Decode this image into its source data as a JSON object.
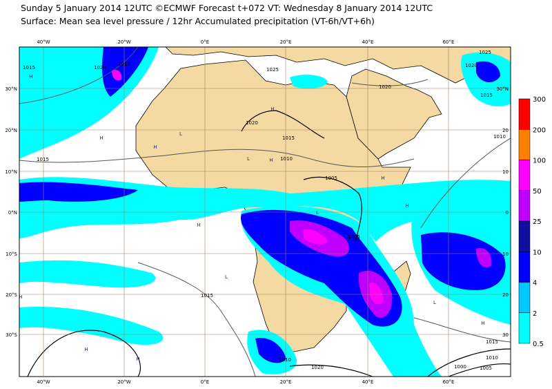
{
  "header": {
    "line1": "Sunday 5 January 2014 12UTC ©ECMWF Forecast t+072 VT: Wednesday 8 January 2014 12UTC",
    "line2": "Surface: Mean sea level pressure / 12hr Accumulated precipitation (VT-6h/VT+6h)"
  },
  "map": {
    "lon_labels": [
      "40°W",
      "20°W",
      "0°E",
      "20°E",
      "40°E",
      "60°E"
    ],
    "lat_labels_left": [
      "30°N",
      "20°N",
      "10°N",
      "0°N",
      "10°S",
      "20°S",
      "30°S"
    ],
    "lat_labels_right": [
      "30°N",
      "20",
      "10",
      "0",
      "10",
      "20",
      "30"
    ],
    "isobar_labels": [
      1015,
      1020,
      1015,
      1025,
      1020,
      1025,
      1020,
      1015,
      1020,
      1015,
      1010,
      1005,
      1015,
      1010,
      1005,
      1015,
      1015,
      1010,
      1005,
      1000,
      1010,
      1020
    ],
    "pressure_centres": [
      "H",
      "H",
      "H",
      "L",
      "H",
      "H",
      "L",
      "L",
      "H",
      "L",
      "H",
      "H",
      "H",
      "H",
      "H",
      "L",
      "H"
    ]
  },
  "legend": {
    "levels": [
      0.5,
      2,
      4,
      10,
      25,
      50,
      100,
      200,
      300
    ],
    "colors": [
      "#00ffff",
      "#00c8ff",
      "#0000ff",
      "#1010a0",
      "#c000ff",
      "#ff00ff",
      "#ff8000",
      "#ff0000"
    ]
  }
}
